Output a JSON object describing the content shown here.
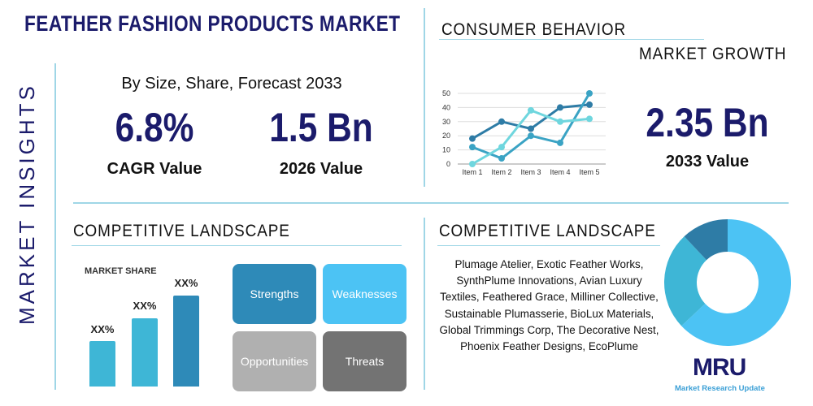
{
  "title": "FEATHER FASHION PRODUCTS MARKET",
  "side_title": "MARKET INSIGHTS",
  "subtitle": "By Size, Share, Forecast 2033",
  "cagr": {
    "value": "6.8%",
    "label": "CAGR Value"
  },
  "value_2026": {
    "value": "1.5 Bn",
    "label": "2026 Value"
  },
  "consumer_behavior": "CONSUMER BEHAVIOR",
  "market_growth": "MARKET GROWTH",
  "value_2033": {
    "value": "2.35 Bn",
    "label": "2033 Value"
  },
  "competitive_left": {
    "heading": "COMPETITIVE LANDSCAPE",
    "market_share": "MARKET SHARE",
    "bars": [
      {
        "label": "XX%",
        "value": 1
      },
      {
        "label": "XX%",
        "value": 2
      },
      {
        "label": "XX%",
        "value": 3
      }
    ]
  },
  "swot": {
    "strengths": "Strengths",
    "weaknesses": "Weaknesses",
    "opportunities": "Opportunities",
    "threats": "Threats"
  },
  "competitive_right": {
    "heading": "COMPETITIVE LANDSCAPE",
    "companies": "Plumage Atelier, Exotic Feather Works, SynthPlume Innovations, Avian Luxury Textiles, Feathered Grace, Milliner Collective, Sustainable Plumasserie, BioLux Materials, Global Trimmings Corp, The Decorative Nest, Phoenix Feather Designs, EcoPlume"
  },
  "logo": {
    "text": "MRU",
    "tagline": "Market Research Update"
  },
  "colors": {
    "navy": "#1b1b6b",
    "dark": "#2e7ca6",
    "mid": "#3eb6d6",
    "light": "#4cc3f4",
    "line_light": "#6fd6de",
    "grey": "#b0b0b0",
    "dark_grey": "#737373"
  },
  "chart_data": [
    {
      "type": "line",
      "categories": [
        "Item 1",
        "Item 2",
        "Item 3",
        "Item 4",
        "Item 5"
      ],
      "ylim": [
        0,
        50
      ],
      "yticks": [
        0,
        10,
        20,
        30,
        40,
        50
      ],
      "grid": true,
      "series": [
        {
          "values": [
            18,
            30,
            25,
            40,
            42
          ],
          "color": "#2e7ca6"
        },
        {
          "values": [
            12,
            4,
            20,
            15,
            50
          ],
          "color": "#3aa3c4"
        },
        {
          "values": [
            0,
            12,
            38,
            30,
            32
          ],
          "color": "#6fd6de"
        }
      ]
    },
    {
      "type": "pie",
      "values": [
        63,
        25,
        12
      ],
      "colors": [
        "#4cc3f4",
        "#3eb6d6",
        "#2e7ca6"
      ],
      "donut": true
    }
  ]
}
